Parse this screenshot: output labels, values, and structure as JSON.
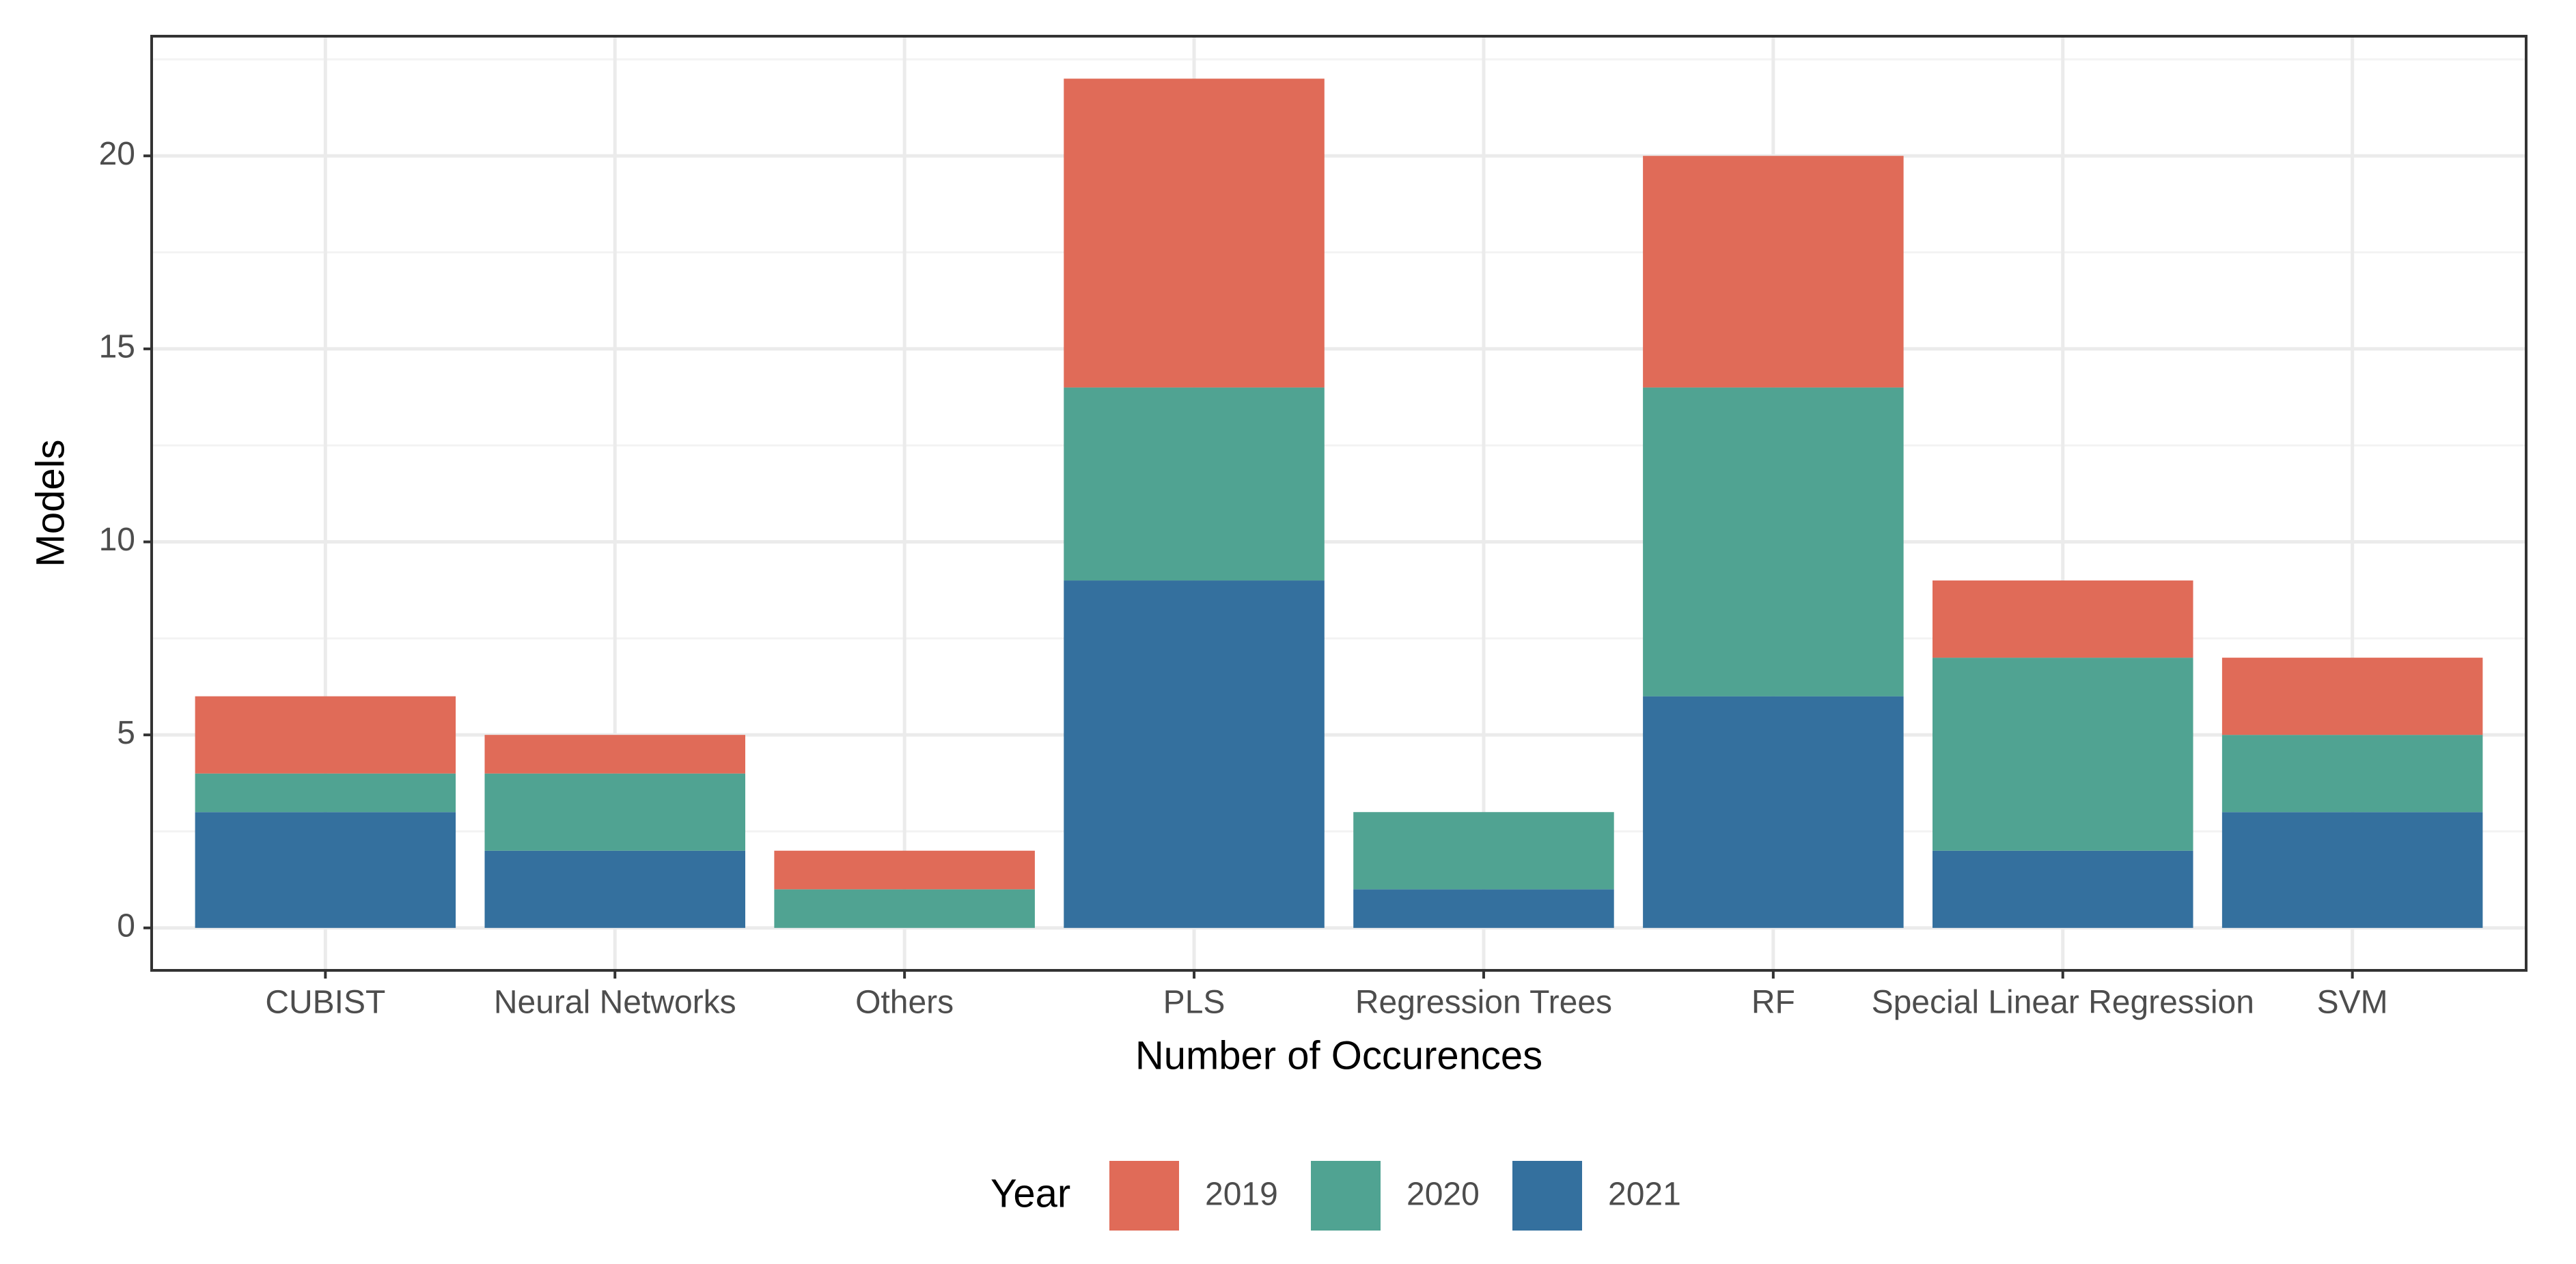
{
  "chart_data": {
    "type": "bar",
    "stacked": true,
    "x_label": "Number of Occurences",
    "y_label": "Models",
    "legend_title": "Year",
    "legend_position": "bottom",
    "categories": [
      "CUBIST",
      "Neural Networks",
      "Others",
      "PLS",
      "Regression Trees",
      "RF",
      "Special Linear Regression",
      "SVM"
    ],
    "series": [
      {
        "name": "2019",
        "color": "#e06b58",
        "values": [
          2,
          1,
          1,
          8,
          0,
          6,
          2,
          2
        ]
      },
      {
        "name": "2020",
        "color": "#50a392",
        "values": [
          1,
          2,
          1,
          5,
          2,
          8,
          5,
          2
        ]
      },
      {
        "name": "2021",
        "color": "#34709e",
        "values": [
          3,
          2,
          0,
          9,
          1,
          6,
          2,
          3
        ]
      }
    ],
    "ylim": [
      -1.1,
      23.1
    ],
    "yticks": [
      0,
      5,
      10,
      15,
      20
    ],
    "grid": true
  }
}
